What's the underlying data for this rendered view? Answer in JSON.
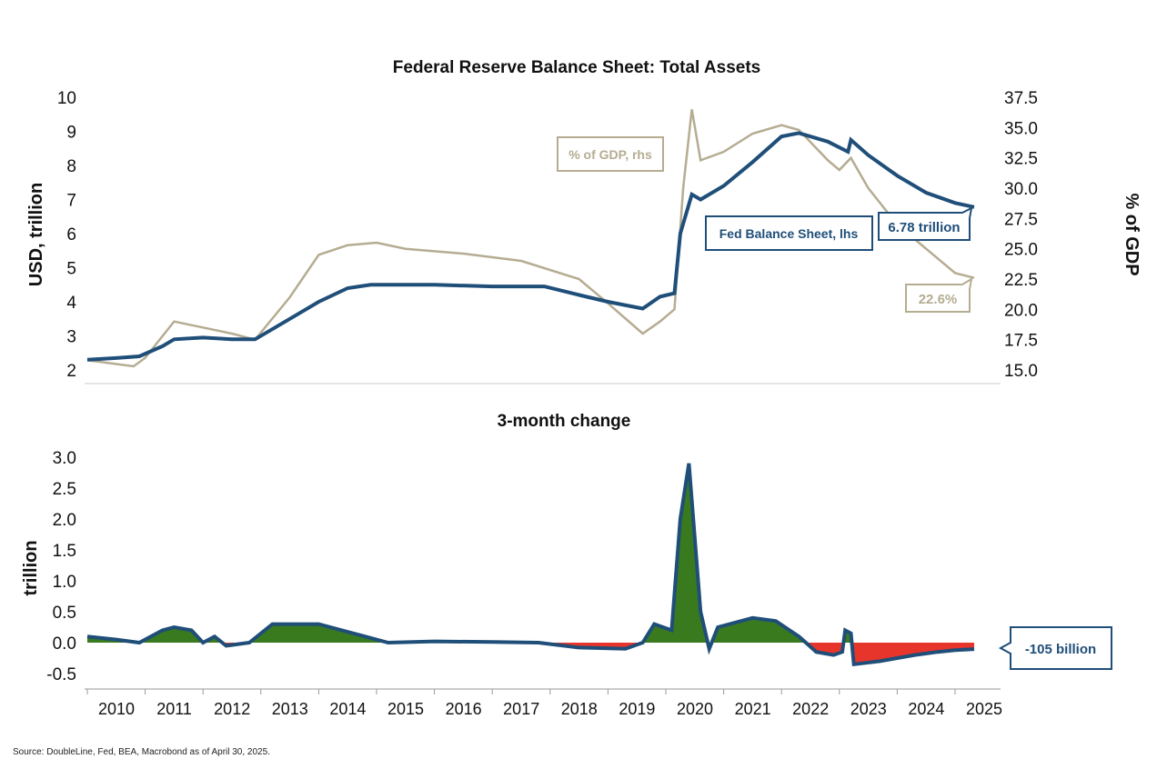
{
  "source": "Source: DoubleLine, Fed, BEA, Macrobond as of April 30, 2025.",
  "colors": {
    "fed": "#1f4e79",
    "gdp": "#b5ac92",
    "pos": "#3a7a1f",
    "neg": "#e8352b"
  },
  "chart_data": [
    {
      "type": "line",
      "title": "Federal Reserve Balance Sheet: Total Assets",
      "ylabel": "USD, trillion",
      "y2label": "% of GDP",
      "ylim": [
        2,
        10
      ],
      "y2lim": [
        15,
        37.5
      ],
      "yticks": [
        "2",
        "3",
        "4",
        "5",
        "6",
        "7",
        "8",
        "9",
        "10"
      ],
      "y2ticks": [
        "15.0",
        "17.5",
        "20.0",
        "22.5",
        "25.0",
        "27.5",
        "30.0",
        "32.5",
        "35.0",
        "37.5"
      ],
      "legend": {
        "fed": "Fed Balance Sheet, lhs",
        "gdp": "% of GDP, rhs"
      },
      "end_labels": {
        "fed": "6.78 trillion",
        "gdp": "22.6%"
      },
      "series": [
        {
          "name": "Fed Balance Sheet, lhs",
          "axis": "left",
          "x": [
            2010.0,
            2010.5,
            2010.9,
            2011.3,
            2011.5,
            2012.0,
            2012.5,
            2012.9,
            2013.5,
            2014.0,
            2014.5,
            2014.9,
            2016.0,
            2017.0,
            2017.9,
            2018.5,
            2019.0,
            2019.6,
            2019.9,
            2020.15,
            2020.25,
            2020.45,
            2020.6,
            2021.0,
            2021.5,
            2022.0,
            2022.3,
            2022.8,
            2023.15,
            2023.2,
            2023.5,
            2024.0,
            2024.5,
            2025.0,
            2025.33
          ],
          "y": [
            2.3,
            2.35,
            2.4,
            2.7,
            2.9,
            2.95,
            2.9,
            2.9,
            3.5,
            4.0,
            4.4,
            4.5,
            4.5,
            4.45,
            4.45,
            4.2,
            4.0,
            3.8,
            4.15,
            4.25,
            6.0,
            7.15,
            7.0,
            7.4,
            8.1,
            8.85,
            8.95,
            8.7,
            8.4,
            8.75,
            8.3,
            7.7,
            7.2,
            6.9,
            6.78
          ]
        },
        {
          "name": "% of GDP, rhs",
          "axis": "right",
          "x": [
            2010.0,
            2010.8,
            2011.0,
            2011.5,
            2012.0,
            2012.5,
            2012.9,
            2013.5,
            2014.0,
            2014.5,
            2015.0,
            2015.5,
            2016.5,
            2017.5,
            2018.5,
            2019.0,
            2019.6,
            2019.9,
            2020.15,
            2020.3,
            2020.45,
            2020.6,
            2021.0,
            2021.5,
            2022.0,
            2022.3,
            2022.8,
            2023.0,
            2023.2,
            2023.5,
            2024.0,
            2024.5,
            2025.0,
            2025.33
          ],
          "y": [
            15.8,
            15.3,
            16.0,
            19.0,
            18.5,
            18.0,
            17.5,
            21.0,
            24.5,
            25.3,
            25.5,
            25.0,
            24.6,
            24.0,
            22.5,
            20.5,
            18.0,
            19.0,
            20.0,
            30.0,
            36.5,
            32.3,
            33.0,
            34.5,
            35.2,
            34.8,
            32.3,
            31.5,
            32.5,
            30.0,
            27.0,
            25.0,
            23.0,
            22.6
          ]
        }
      ]
    },
    {
      "type": "area",
      "title": "3-month change",
      "ylabel": "trillion",
      "ylim": [
        -0.5,
        3.0
      ],
      "yticks": [
        "-0.5",
        "0.0",
        "0.5",
        "1.0",
        "1.5",
        "2.0",
        "2.5",
        "3.0"
      ],
      "xticks": [
        "2010",
        "2011",
        "2012",
        "2013",
        "2014",
        "2015",
        "2016",
        "2017",
        "2018",
        "2019",
        "2020",
        "2021",
        "2022",
        "2023",
        "2024",
        "2025"
      ],
      "end_label": "-105 billion",
      "x": [
        2010.0,
        2010.5,
        2010.9,
        2011.3,
        2011.5,
        2011.8,
        2012.0,
        2012.2,
        2012.4,
        2012.8,
        2013.2,
        2014.0,
        2014.8,
        2015.2,
        2016.0,
        2017.0,
        2017.8,
        2018.5,
        2019.3,
        2019.6,
        2019.8,
        2020.1,
        2020.25,
        2020.4,
        2020.6,
        2020.75,
        2020.9,
        2021.5,
        2021.9,
        2022.3,
        2022.6,
        2022.9,
        2023.05,
        2023.1,
        2023.2,
        2023.25,
        2023.7,
        2024.0,
        2024.3,
        2024.7,
        2025.0,
        2025.33
      ],
      "y": [
        0.1,
        0.05,
        0.0,
        0.2,
        0.25,
        0.2,
        0.0,
        0.1,
        -0.05,
        0.0,
        0.3,
        0.3,
        0.1,
        0.0,
        0.02,
        0.01,
        0.0,
        -0.08,
        -0.1,
        0.0,
        0.3,
        0.2,
        2.0,
        2.9,
        0.5,
        -0.1,
        0.25,
        0.4,
        0.35,
        0.1,
        -0.15,
        -0.2,
        -0.15,
        0.2,
        0.15,
        -0.35,
        -0.3,
        -0.25,
        -0.2,
        -0.15,
        -0.12,
        -0.105
      ]
    }
  ]
}
